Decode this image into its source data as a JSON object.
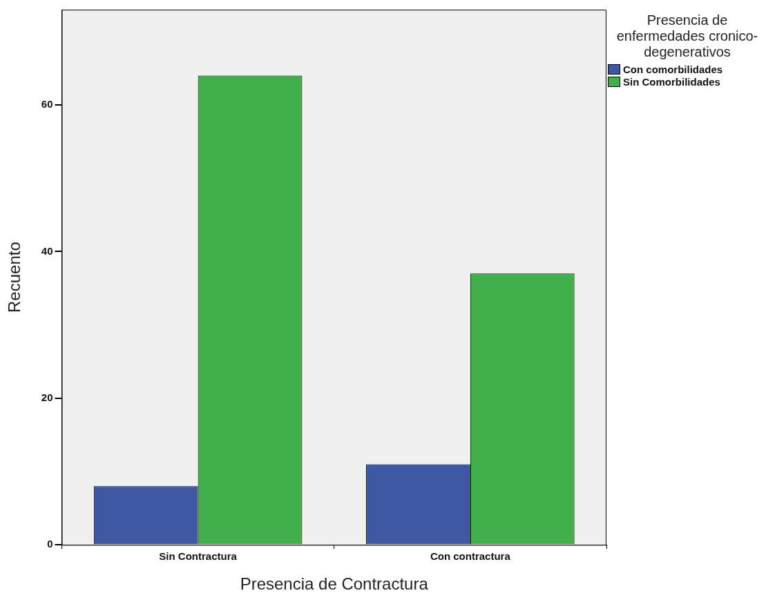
{
  "chart_data": {
    "type": "bar",
    "xlabel": "Presencia de Contractura",
    "ylabel": "Recuento",
    "legend_title": "Presencia de enfermedades cronico-degenerativos",
    "categories": [
      "Sin Contractura",
      "Con contractura"
    ],
    "series": [
      {
        "name": "Con comorbilidades",
        "color": "#3e58a3",
        "values": [
          8,
          11
        ]
      },
      {
        "name": "Sin Comorbilidades",
        "color": "#3fb04a",
        "values": [
          64,
          37
        ]
      }
    ],
    "ylim": [
      0,
      73
    ],
    "yticks": [
      0,
      20,
      40,
      60
    ],
    "grid": false,
    "legend": "top right"
  }
}
